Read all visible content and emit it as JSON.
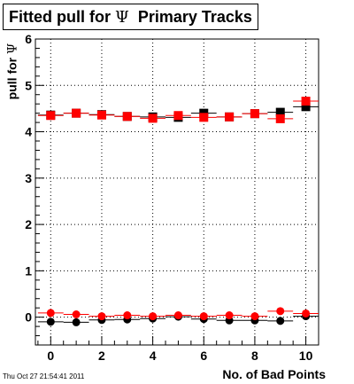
{
  "header": {
    "title_prefix": "Fitted pull for",
    "title_symbol": "Ψ",
    "title_suffix": "Primary Tracks",
    "timestamp": "Thu Oct 27 21:54:41 2011"
  },
  "chart_data": {
    "type": "scatter",
    "title": "Fitted pull for Ψ Primary Tracks",
    "xlabel": "No. of Bad Points",
    "ylabel_prefix": "pull for",
    "ylabel_symbol": "Ψ",
    "xlim": [
      -0.6,
      10.5
    ],
    "ylim": [
      -0.6,
      6
    ],
    "x_ticks": [
      0,
      2,
      4,
      6,
      8,
      10
    ],
    "y_ticks": [
      0,
      1,
      2,
      3,
      4,
      5,
      6
    ],
    "grid": true,
    "x": [
      0,
      1,
      2,
      3,
      4,
      5,
      6,
      7,
      8,
      9,
      10
    ],
    "series": [
      {
        "marker": "square",
        "color": "#000000",
        "values": [
          4.36,
          4.4,
          4.37,
          4.33,
          4.32,
          4.31,
          4.4,
          4.32,
          4.39,
          4.42,
          4.54
        ]
      },
      {
        "marker": "square",
        "color": "#ff0000",
        "values": [
          4.35,
          4.4,
          4.36,
          4.33,
          4.29,
          4.35,
          4.31,
          4.32,
          4.39,
          4.28,
          4.66
        ]
      },
      {
        "marker": "circle",
        "color": "#000000",
        "values": [
          -0.1,
          -0.11,
          -0.06,
          -0.05,
          -0.03,
          0.01,
          -0.04,
          -0.07,
          -0.07,
          -0.08,
          0.02
        ]
      },
      {
        "marker": "circle",
        "color": "#ff0000",
        "values": [
          0.09,
          0.06,
          0.02,
          0.04,
          0.02,
          0.04,
          0.02,
          0.04,
          0.02,
          0.13,
          0.08
        ]
      }
    ]
  }
}
